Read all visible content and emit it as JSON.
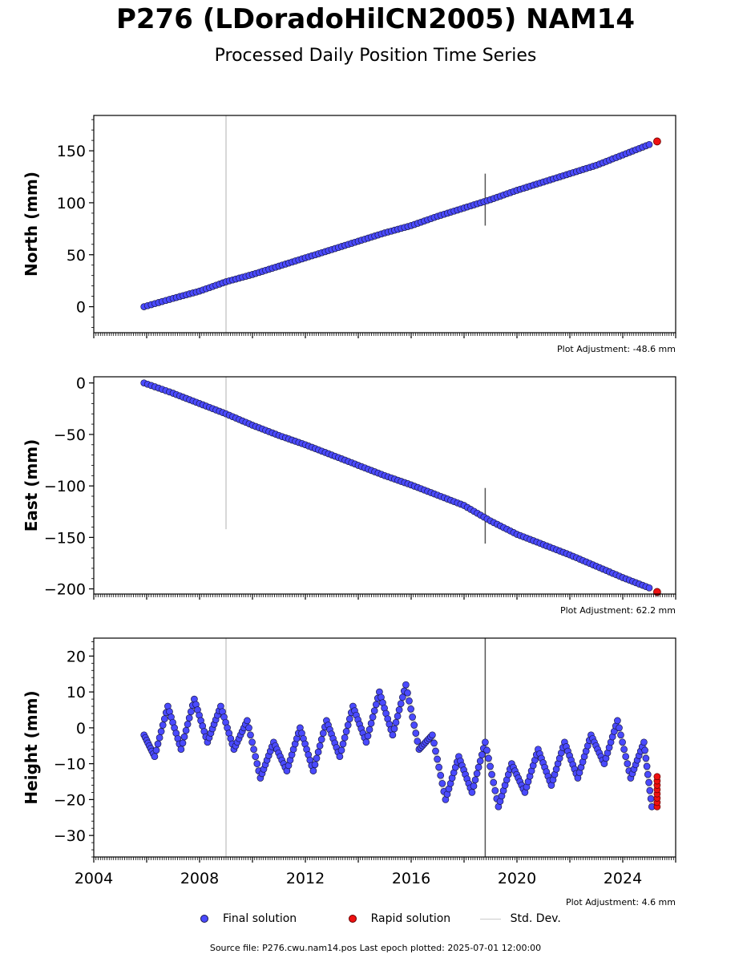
{
  "title": "P276 (LDoradoHilCN2005) NAM14",
  "subtitle": "Processed Daily Position Time Series",
  "colors": {
    "final": "#4a4aff",
    "rapid": "#ee1111",
    "stddev": "#bbbbbb",
    "edge": "#1a1a4a"
  },
  "legend": {
    "final": "Final solution",
    "rapid": "Rapid solution",
    "stddev": "Std. Dev."
  },
  "source_text": "Source file: P276.cwu.nam14.pos  Last epoch plotted: 2025-07-01 12:00:00",
  "chart_data": [
    {
      "type": "scatter",
      "ylabel": "North (mm)",
      "adjustment": "Plot Adjustment: -48.6 mm",
      "xlim": [
        2004.0,
        2026.0
      ],
      "ylim": [
        -25,
        184
      ],
      "yticks": [
        0,
        50,
        100,
        150
      ],
      "x": [
        2005.9,
        2007.0,
        2008.0,
        2009.0,
        2010.0,
        2011.0,
        2012.0,
        2013.0,
        2014.0,
        2015.0,
        2016.0,
        2017.0,
        2018.0,
        2019.0,
        2020.0,
        2021.0,
        2022.0,
        2023.0,
        2024.0,
        2025.0
      ],
      "values": [
        0,
        8,
        15,
        24,
        31,
        39,
        47,
        55,
        63,
        71,
        78,
        87,
        95,
        103,
        112,
        120,
        128,
        136,
        146,
        156
      ],
      "rapid": {
        "x": [
          2025.3
        ],
        "values": [
          159
        ]
      },
      "stddev_lines": [
        {
          "x": 2009.0,
          "ylim": [
            -25,
            184
          ],
          "color": "#cccccc"
        },
        {
          "x": 2018.8,
          "ylim": [
            78,
            128
          ],
          "color": "#555555"
        }
      ]
    },
    {
      "type": "scatter",
      "ylabel": "East (mm)",
      "adjustment": "Plot Adjustment: 62.2 mm",
      "xlim": [
        2004.0,
        2026.0
      ],
      "ylim": [
        -205,
        6
      ],
      "yticks": [
        0,
        -50,
        -100,
        -150,
        -200
      ],
      "x": [
        2005.9,
        2007.0,
        2008.0,
        2009.0,
        2010.0,
        2011.0,
        2012.0,
        2013.0,
        2014.0,
        2015.0,
        2016.0,
        2017.0,
        2018.0,
        2019.0,
        2020.0,
        2021.0,
        2022.0,
        2023.0,
        2024.0,
        2025.0
      ],
      "values": [
        0,
        -10,
        -20,
        -30,
        -41,
        -51,
        -60,
        -70,
        -80,
        -90,
        -99,
        -109,
        -119,
        -134,
        -147,
        -157,
        -167,
        -178,
        -189,
        -199
      ],
      "rapid": {
        "x": [
          2025.3
        ],
        "values": [
          -203
        ]
      },
      "stddev_lines": [
        {
          "x": 2009.0,
          "ylim": [
            -142,
            6
          ],
          "color": "#cccccc"
        },
        {
          "x": 2018.8,
          "ylim": [
            -156,
            -102
          ],
          "color": "#555555"
        }
      ]
    },
    {
      "type": "scatter",
      "ylabel": "Height (mm)",
      "adjustment": "Plot Adjustment: 4.6 mm",
      "xlim": [
        2004.0,
        2026.0
      ],
      "ylim": [
        -36,
        25
      ],
      "yticks": [
        20,
        10,
        0,
        -10,
        -20,
        -30
      ],
      "xticks": [
        2004,
        2008,
        2012,
        2016,
        2020,
        2024
      ],
      "x": [
        2005.9,
        2006.3,
        2006.8,
        2007.3,
        2007.8,
        2008.3,
        2008.8,
        2009.3,
        2009.8,
        2010.3,
        2010.8,
        2011.3,
        2011.8,
        2012.3,
        2012.8,
        2013.3,
        2013.8,
        2014.3,
        2014.8,
        2015.3,
        2015.8,
        2016.3,
        2016.8,
        2017.3,
        2017.8,
        2018.3,
        2018.8,
        2019.3,
        2019.8,
        2020.3,
        2020.8,
        2021.3,
        2021.8,
        2022.3,
        2022.8,
        2023.3,
        2023.8,
        2024.3,
        2024.8,
        2025.1
      ],
      "values": [
        -2,
        -8,
        6,
        -6,
        8,
        -4,
        6,
        -6,
        2,
        -14,
        -4,
        -12,
        0,
        -12,
        2,
        -8,
        6,
        -4,
        10,
        -2,
        12,
        -6,
        -2,
        -20,
        -8,
        -18,
        -4,
        -22,
        -10,
        -18,
        -6,
        -16,
        -4,
        -14,
        -2,
        -10,
        2,
        -14,
        -4,
        -22
      ],
      "rapid": {
        "x": [
          2025.3
        ],
        "values": [
          -18
        ]
      },
      "stddev_lines": [
        {
          "x": 2009.0,
          "ylim": [
            -36,
            25
          ],
          "color": "#cccccc"
        },
        {
          "x": 2018.8,
          "ylim": [
            -36,
            25
          ],
          "color": "#555555"
        }
      ]
    }
  ]
}
